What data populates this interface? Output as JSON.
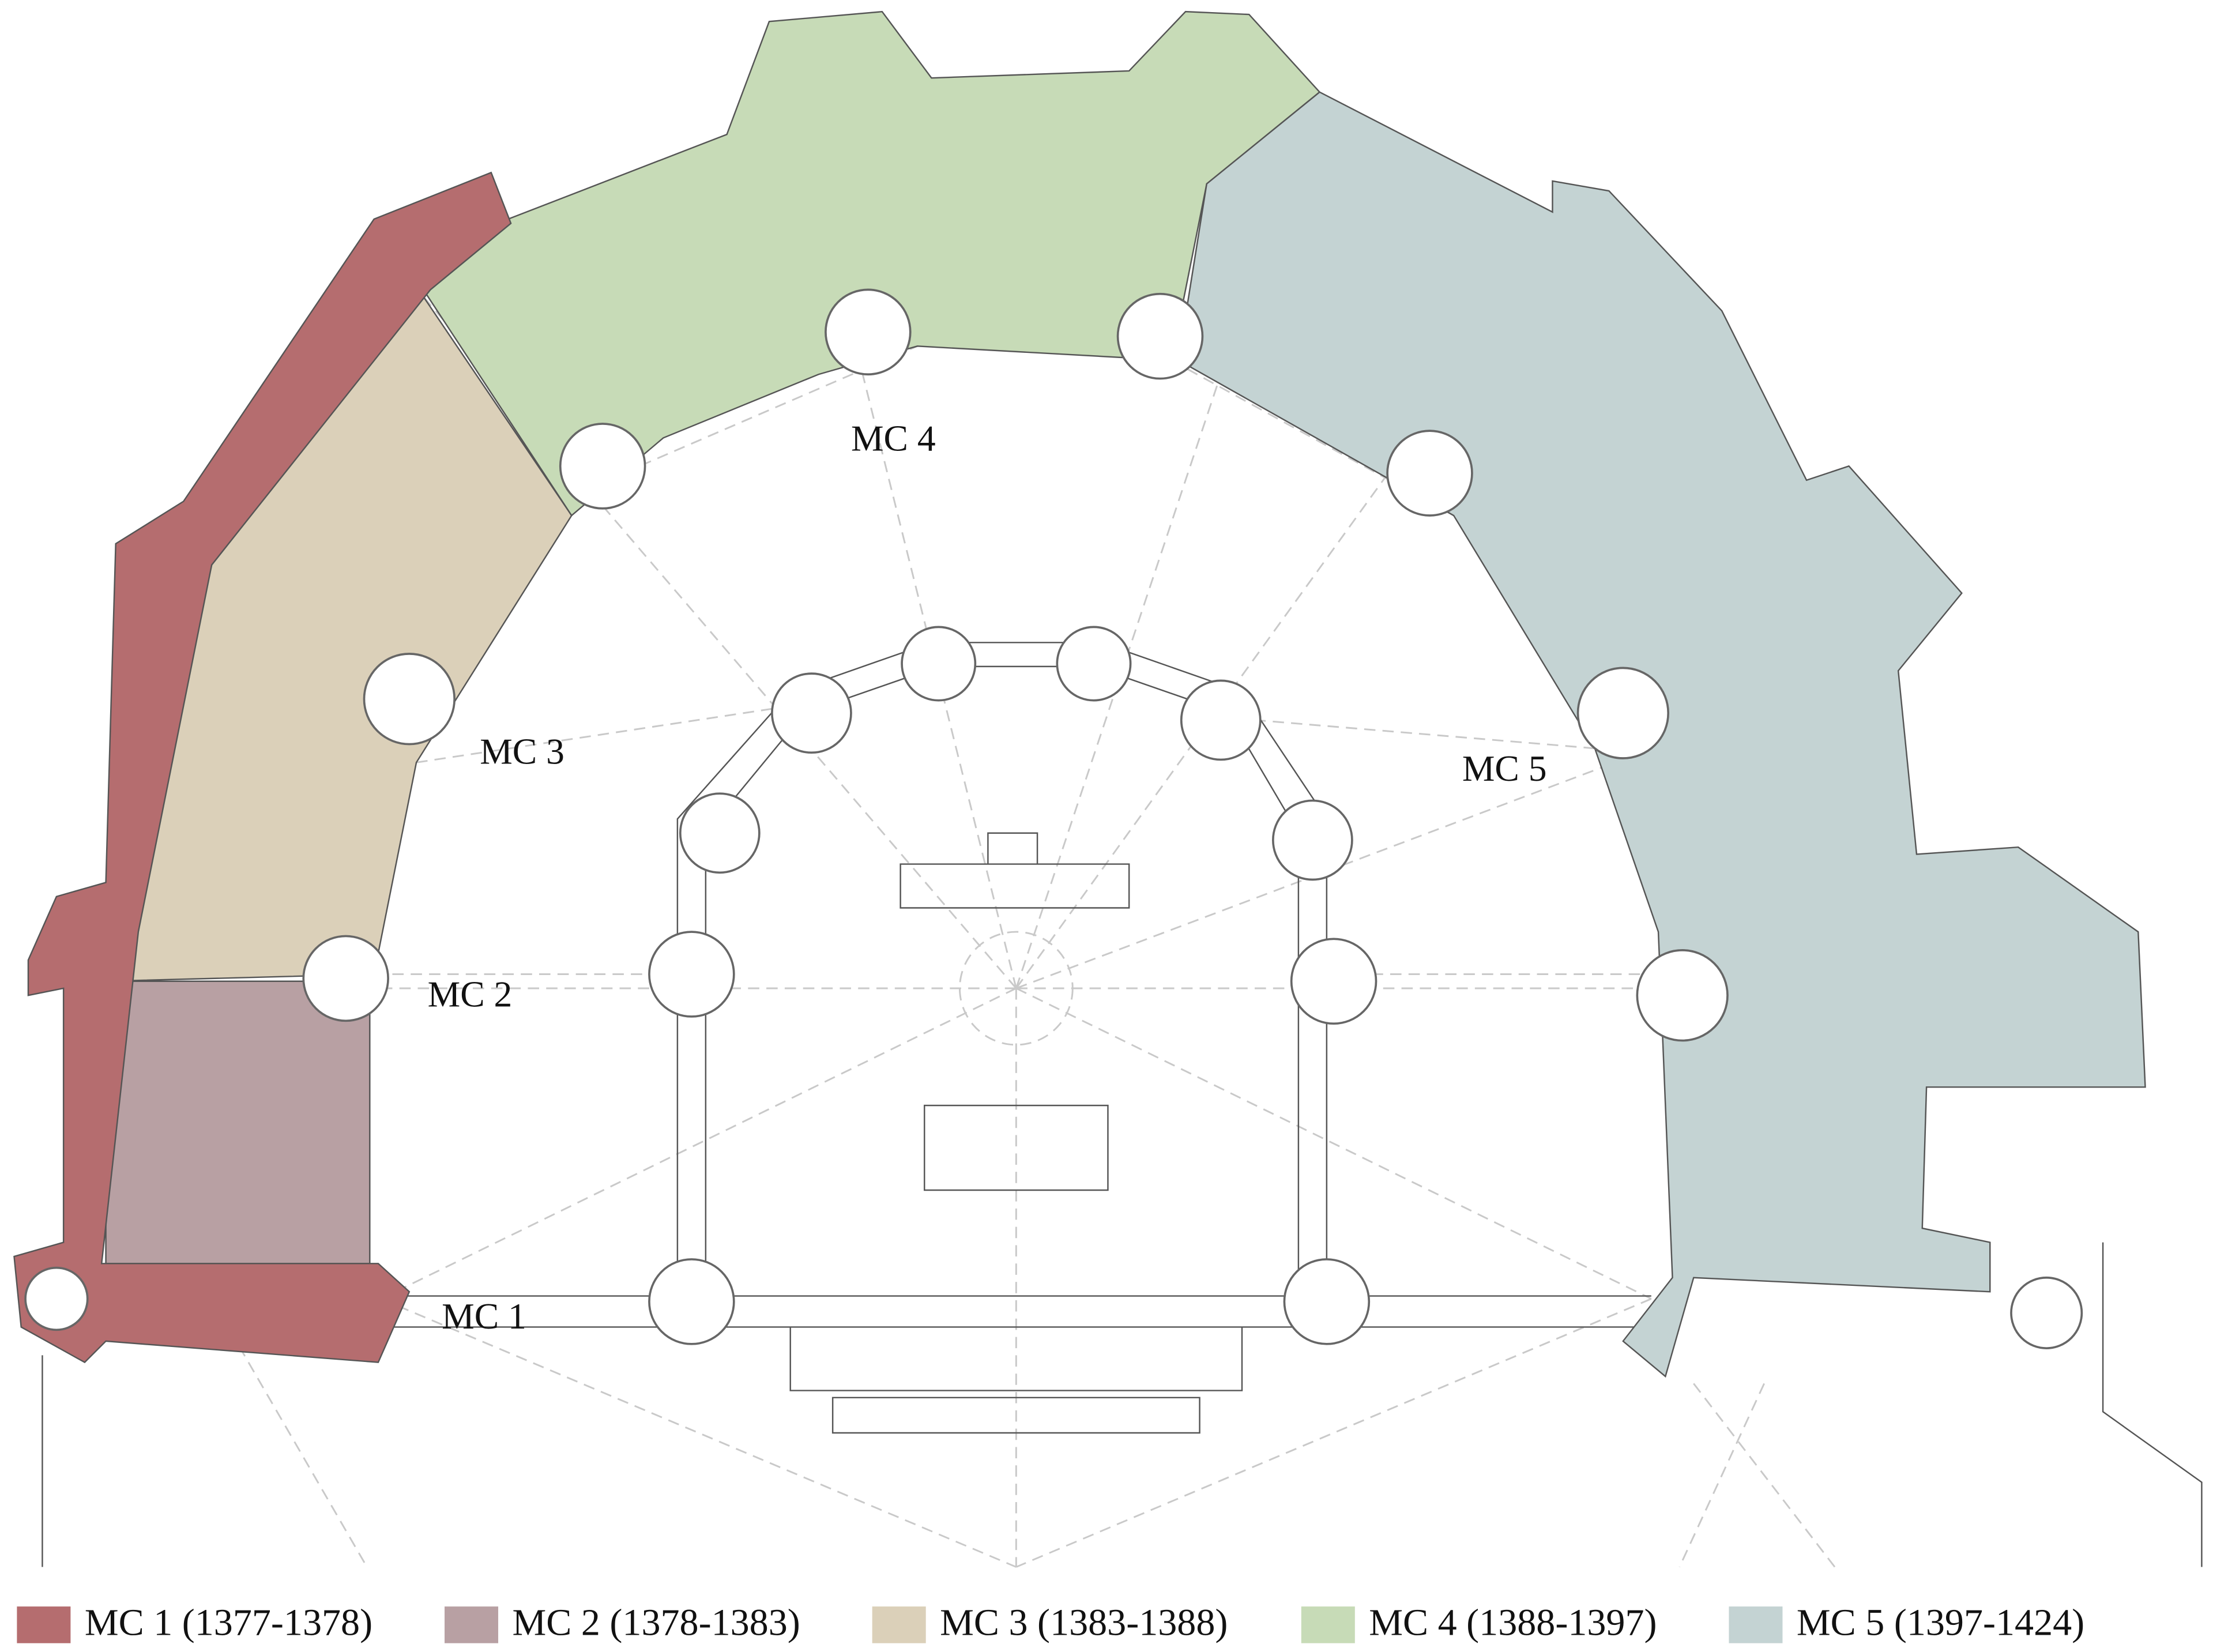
{
  "plan_labels": [
    "MC 1",
    "MC 2",
    "MC 3",
    "MC 4",
    "MC 5"
  ],
  "legend": [
    {
      "label": "MC 1 (1377-1378)",
      "color": "#b56d6f"
    },
    {
      "label": "MC 2 (1378-1383)",
      "color": "#b8a0a3"
    },
    {
      "label": "MC 3 (1383-1388)",
      "color": "#dbd0b9"
    },
    {
      "label": "MC 4 (1388-1397)",
      "color": "#c7dbb7"
    },
    {
      "label": "MC 5 (1397-1424)",
      "color": "#c4d3d3"
    }
  ]
}
